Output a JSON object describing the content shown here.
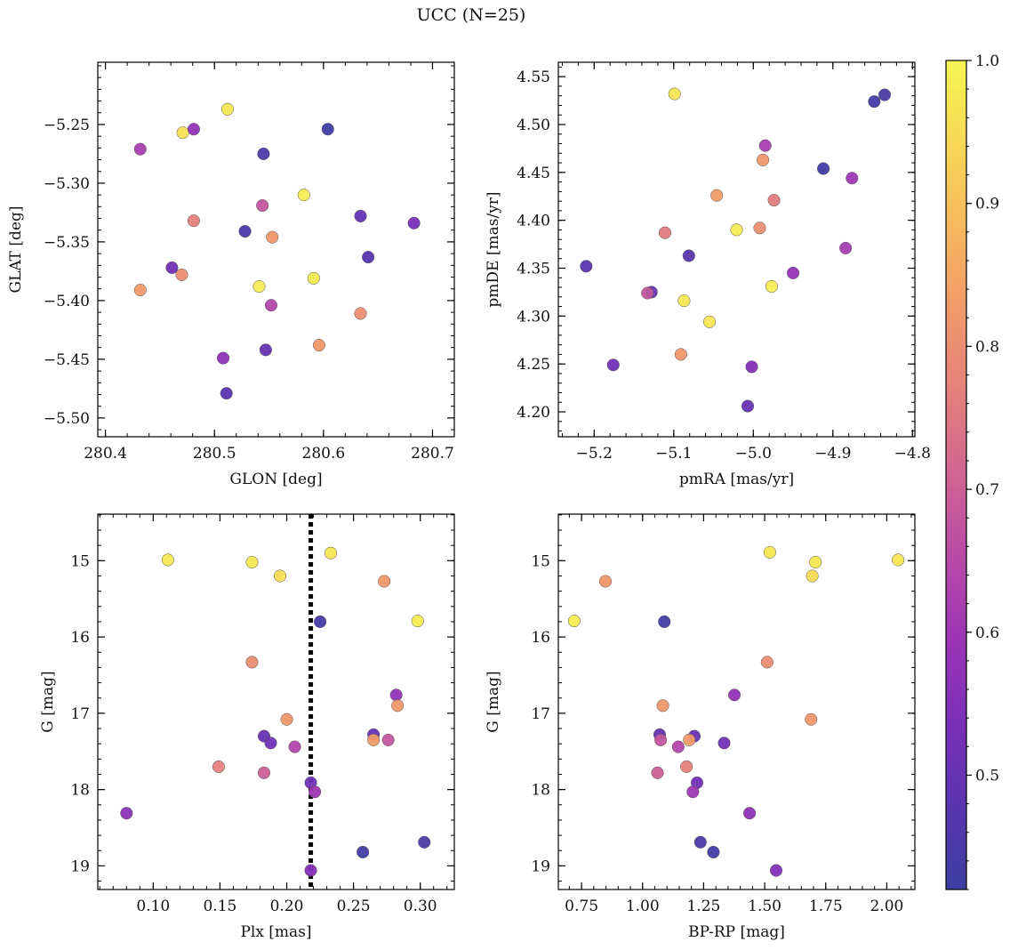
{
  "figure": {
    "title": "UCC (N=25)"
  },
  "colorbar": {
    "vmin": 0.42,
    "vmax": 1.0,
    "ticks": [
      0.5,
      0.6,
      0.7,
      0.8,
      0.9,
      1.0
    ],
    "tick_labels": [
      "0.5",
      "0.6",
      "0.7",
      "0.8",
      "0.9",
      "1.0"
    ],
    "colormap": "plasma",
    "colormap_stops": [
      "#3b3fa0",
      "#5a35b0",
      "#7a2fb8",
      "#9b35b5",
      "#b84aa8",
      "#d06592",
      "#e4807c",
      "#f09a6a",
      "#f7b85e",
      "#f8d856",
      "#f5f552"
    ]
  },
  "chart_data": [
    {
      "type": "scatter",
      "xlabel": "GLON [deg]",
      "ylabel": "GLAT [deg]",
      "xlim": [
        280.393,
        280.72
      ],
      "ylim": [
        -5.516,
        -5.197
      ],
      "xticks": [
        280.4,
        280.5,
        280.6,
        280.7
      ],
      "xtick_labels": [
        "280.4",
        "280.5",
        "280.6",
        "280.7"
      ],
      "yticks": [
        -5.5,
        -5.45,
        -5.4,
        -5.35,
        -5.3,
        -5.25
      ],
      "ytick_labels": [
        "−5.50",
        "−5.45",
        "−5.40",
        "−5.35",
        "−5.30",
        "−5.25"
      ],
      "points": [
        {
          "x": 280.432,
          "y": -5.271,
          "c": 0.62
        },
        {
          "x": 280.471,
          "y": -5.257,
          "c": 0.96
        },
        {
          "x": 280.481,
          "y": -5.254,
          "c": 0.58
        },
        {
          "x": 280.512,
          "y": -5.237,
          "c": 0.97
        },
        {
          "x": 280.545,
          "y": -5.275,
          "c": 0.45
        },
        {
          "x": 280.604,
          "y": -5.254,
          "c": 0.43
        },
        {
          "x": 280.582,
          "y": -5.31,
          "c": 0.98
        },
        {
          "x": 280.544,
          "y": -5.319,
          "c": 0.68
        },
        {
          "x": 280.481,
          "y": -5.332,
          "c": 0.77
        },
        {
          "x": 280.528,
          "y": -5.341,
          "c": 0.45
        },
        {
          "x": 280.553,
          "y": -5.346,
          "c": 0.82
        },
        {
          "x": 280.634,
          "y": -5.328,
          "c": 0.5
        },
        {
          "x": 280.683,
          "y": -5.334,
          "c": 0.53
        },
        {
          "x": 280.641,
          "y": -5.363,
          "c": 0.47
        },
        {
          "x": 280.461,
          "y": -5.372,
          "c": 0.52
        },
        {
          "x": 280.47,
          "y": -5.378,
          "c": 0.8
        },
        {
          "x": 280.432,
          "y": -5.391,
          "c": 0.83
        },
        {
          "x": 280.541,
          "y": -5.388,
          "c": 0.98
        },
        {
          "x": 280.591,
          "y": -5.381,
          "c": 0.98
        },
        {
          "x": 280.552,
          "y": -5.404,
          "c": 0.64
        },
        {
          "x": 280.634,
          "y": -5.411,
          "c": 0.8
        },
        {
          "x": 280.508,
          "y": -5.449,
          "c": 0.57
        },
        {
          "x": 280.547,
          "y": -5.442,
          "c": 0.5
        },
        {
          "x": 280.596,
          "y": -5.438,
          "c": 0.82
        },
        {
          "x": 280.511,
          "y": -5.479,
          "c": 0.48
        }
      ]
    },
    {
      "type": "scatter",
      "xlabel": "pmRA [mas/yr]",
      "ylabel": "pmDE [mas/yr]",
      "xlim": [
        -5.245,
        -4.797
      ],
      "ylim": [
        4.174,
        4.565
      ],
      "xticks": [
        -5.2,
        -5.1,
        -5.0,
        -4.9,
        -4.8
      ],
      "xtick_labels": [
        "−5.2",
        "−5.1",
        "−5.0",
        "−4.9",
        "−4.8"
      ],
      "yticks": [
        4.2,
        4.25,
        4.3,
        4.35,
        4.4,
        4.45,
        4.5,
        4.55
      ],
      "ytick_labels": [
        "4.20",
        "4.25",
        "4.30",
        "4.35",
        "4.40",
        "4.45",
        "4.50",
        "4.55"
      ],
      "points": [
        {
          "x": -5.099,
          "y": 4.532,
          "c": 0.97
        },
        {
          "x": -4.835,
          "y": 4.531,
          "c": 0.45
        },
        {
          "x": -4.848,
          "y": 4.524,
          "c": 0.44
        },
        {
          "x": -4.985,
          "y": 4.478,
          "c": 0.62
        },
        {
          "x": -4.988,
          "y": 4.463,
          "c": 0.82
        },
        {
          "x": -4.912,
          "y": 4.454,
          "c": 0.43
        },
        {
          "x": -4.876,
          "y": 4.444,
          "c": 0.6
        },
        {
          "x": -5.046,
          "y": 4.426,
          "c": 0.83
        },
        {
          "x": -4.974,
          "y": 4.421,
          "c": 0.76
        },
        {
          "x": -4.992,
          "y": 4.392,
          "c": 0.8
        },
        {
          "x": -5.021,
          "y": 4.39,
          "c": 0.98
        },
        {
          "x": -5.111,
          "y": 4.387,
          "c": 0.76
        },
        {
          "x": -4.884,
          "y": 4.371,
          "c": 0.62
        },
        {
          "x": -5.081,
          "y": 4.363,
          "c": 0.47
        },
        {
          "x": -5.21,
          "y": 4.352,
          "c": 0.48
        },
        {
          "x": -4.95,
          "y": 4.345,
          "c": 0.58
        },
        {
          "x": -4.977,
          "y": 4.331,
          "c": 0.98
        },
        {
          "x": -5.128,
          "y": 4.325,
          "c": 0.5
        },
        {
          "x": -5.133,
          "y": 4.324,
          "c": 0.68
        },
        {
          "x": -5.087,
          "y": 4.316,
          "c": 0.97
        },
        {
          "x": -5.055,
          "y": 4.294,
          "c": 0.97
        },
        {
          "x": -5.091,
          "y": 4.26,
          "c": 0.82
        },
        {
          "x": -5.176,
          "y": 4.249,
          "c": 0.52
        },
        {
          "x": -5.002,
          "y": 4.247,
          "c": 0.55
        },
        {
          "x": -5.007,
          "y": 4.206,
          "c": 0.5
        }
      ]
    },
    {
      "type": "scatter",
      "xlabel": "Plx [mas]",
      "ylabel": "G [mag]",
      "xlim": [
        0.0585,
        0.3255
      ],
      "ylim": [
        19.31,
        14.39
      ],
      "xticks": [
        0.1,
        0.15,
        0.2,
        0.25,
        0.3
      ],
      "xtick_labels": [
        "0.10",
        "0.15",
        "0.20",
        "0.25",
        "0.30"
      ],
      "yticks": [
        15,
        16,
        17,
        18,
        19
      ],
      "ytick_labels": [
        "15",
        "16",
        "17",
        "18",
        "19"
      ],
      "vline": 0.218,
      "points": [
        {
          "x": 0.111,
          "y": 14.99,
          "c": 0.97
        },
        {
          "x": 0.174,
          "y": 15.02,
          "c": 0.97
        },
        {
          "x": 0.195,
          "y": 15.2,
          "c": 0.95
        },
        {
          "x": 0.233,
          "y": 14.9,
          "c": 0.97
        },
        {
          "x": 0.273,
          "y": 15.27,
          "c": 0.82
        },
        {
          "x": 0.298,
          "y": 15.79,
          "c": 0.98
        },
        {
          "x": 0.225,
          "y": 15.8,
          "c": 0.44
        },
        {
          "x": 0.174,
          "y": 16.33,
          "c": 0.8
        },
        {
          "x": 0.282,
          "y": 16.76,
          "c": 0.58
        },
        {
          "x": 0.283,
          "y": 16.9,
          "c": 0.82
        },
        {
          "x": 0.2,
          "y": 17.08,
          "c": 0.82
        },
        {
          "x": 0.265,
          "y": 17.28,
          "c": 0.5
        },
        {
          "x": 0.183,
          "y": 17.3,
          "c": 0.5
        },
        {
          "x": 0.265,
          "y": 17.35,
          "c": 0.83
        },
        {
          "x": 0.276,
          "y": 17.35,
          "c": 0.68
        },
        {
          "x": 0.188,
          "y": 17.39,
          "c": 0.52
        },
        {
          "x": 0.206,
          "y": 17.44,
          "c": 0.64
        },
        {
          "x": 0.149,
          "y": 17.7,
          "c": 0.77
        },
        {
          "x": 0.183,
          "y": 17.78,
          "c": 0.7
        },
        {
          "x": 0.218,
          "y": 17.91,
          "c": 0.52
        },
        {
          "x": 0.221,
          "y": 18.03,
          "c": 0.6
        },
        {
          "x": 0.08,
          "y": 18.31,
          "c": 0.57
        },
        {
          "x": 0.303,
          "y": 18.69,
          "c": 0.45
        },
        {
          "x": 0.257,
          "y": 18.82,
          "c": 0.43
        },
        {
          "x": 0.218,
          "y": 19.06,
          "c": 0.55
        }
      ]
    },
    {
      "type": "scatter",
      "xlabel": "BP-RP [mag]",
      "ylabel": "G [mag]",
      "xlim": [
        0.655,
        2.115
      ],
      "ylim": [
        19.31,
        14.39
      ],
      "xticks": [
        0.75,
        1.0,
        1.25,
        1.5,
        1.75,
        2.0
      ],
      "xtick_labels": [
        "0.75",
        "1.00",
        "1.25",
        "1.50",
        "1.75",
        "2.00"
      ],
      "yticks": [
        15,
        16,
        17,
        18,
        19
      ],
      "ytick_labels": [
        "15",
        "16",
        "17",
        "18",
        "19"
      ],
      "points": [
        {
          "x": 1.521,
          "y": 14.89,
          "c": 0.97
        },
        {
          "x": 2.046,
          "y": 14.99,
          "c": 0.97
        },
        {
          "x": 1.708,
          "y": 15.02,
          "c": 0.97
        },
        {
          "x": 1.695,
          "y": 15.2,
          "c": 0.95
        },
        {
          "x": 0.848,
          "y": 15.27,
          "c": 0.82
        },
        {
          "x": 0.72,
          "y": 15.79,
          "c": 0.98
        },
        {
          "x": 1.089,
          "y": 15.8,
          "c": 0.44
        },
        {
          "x": 1.51,
          "y": 16.33,
          "c": 0.8
        },
        {
          "x": 1.376,
          "y": 16.76,
          "c": 0.58
        },
        {
          "x": 1.083,
          "y": 16.9,
          "c": 0.82
        },
        {
          "x": 1.69,
          "y": 17.08,
          "c": 0.82
        },
        {
          "x": 1.07,
          "y": 17.28,
          "c": 0.5
        },
        {
          "x": 1.212,
          "y": 17.3,
          "c": 0.5
        },
        {
          "x": 1.074,
          "y": 17.35,
          "c": 0.68
        },
        {
          "x": 1.191,
          "y": 17.35,
          "c": 0.83
        },
        {
          "x": 1.334,
          "y": 17.39,
          "c": 0.52
        },
        {
          "x": 1.146,
          "y": 17.44,
          "c": 0.64
        },
        {
          "x": 1.18,
          "y": 17.7,
          "c": 0.77
        },
        {
          "x": 1.061,
          "y": 17.78,
          "c": 0.7
        },
        {
          "x": 1.223,
          "y": 17.91,
          "c": 0.52
        },
        {
          "x": 1.206,
          "y": 18.03,
          "c": 0.6
        },
        {
          "x": 1.438,
          "y": 18.31,
          "c": 0.57
        },
        {
          "x": 1.237,
          "y": 18.69,
          "c": 0.45
        },
        {
          "x": 1.29,
          "y": 18.82,
          "c": 0.43
        },
        {
          "x": 1.547,
          "y": 19.06,
          "c": 0.55
        }
      ]
    }
  ]
}
